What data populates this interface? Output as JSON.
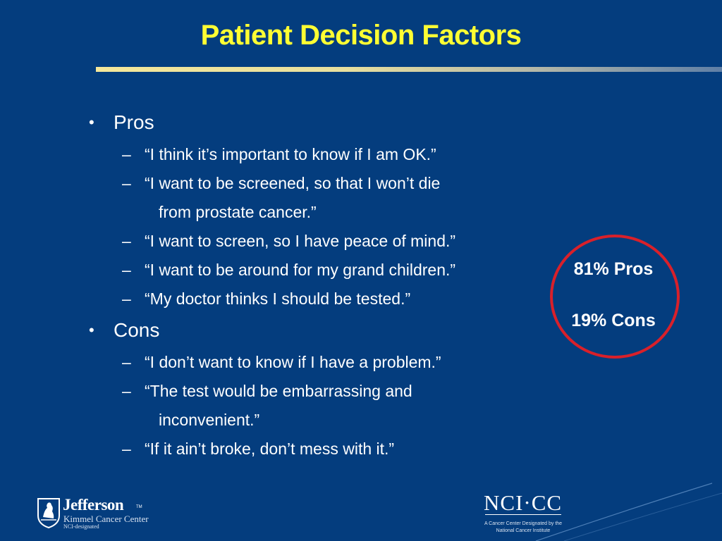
{
  "slide": {
    "title": "Patient Decision Factors",
    "pros": {
      "heading": "Pros",
      "items": [
        {
          "line1": "“I think it’s important to know if I am OK.”"
        },
        {
          "line1": "“I want to be screened, so that I won’t die",
          "line2": "from prostate cancer.”"
        },
        {
          "line1": "“I want to screen, so I have peace of mind.”"
        },
        {
          "line1": "“I want to be around for my grand children.”"
        },
        {
          "line1": "“My doctor thinks I should be tested.”"
        }
      ]
    },
    "cons": {
      "heading": "Cons",
      "items": [
        {
          "line1": "“I don’t want to know if I have a problem.”"
        },
        {
          "line1": "“The test would be embarrassing and",
          "line2": "inconvenient.”"
        },
        {
          "line1": "“If it ain’t broke, don’t mess with it.”"
        }
      ]
    },
    "bullet_char": "•",
    "dash_char": "–",
    "stats": {
      "pros": "81% Pros",
      "cons": "19% Cons"
    }
  },
  "logos": {
    "jefferson": {
      "name": "Jefferson",
      "tm": "TM",
      "subtitle": "Kimmel Cancer Center",
      "tag": "NCI-designated"
    },
    "nci": {
      "name": "NCI·CC",
      "caption1": "A Cancer Center Designated by the",
      "caption2": "National Cancer Institute"
    }
  },
  "colors": {
    "background": "#043d7e",
    "title": "#ffff33",
    "text": "#ffffff",
    "circle": "#d9202a"
  }
}
